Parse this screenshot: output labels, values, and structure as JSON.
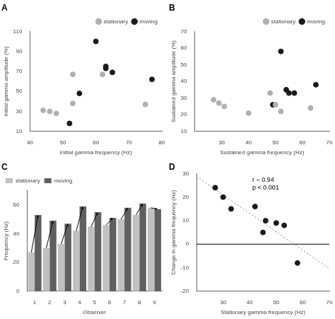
{
  "chart_data": [
    {
      "type": "scatter",
      "title": "A",
      "xlabel": "Initial gamma frequency (Hz)",
      "ylabel": "Initial gamma amplitude (%)",
      "xlim": [
        40,
        80
      ],
      "ylim": [
        10,
        110
      ],
      "xticks": [
        40,
        50,
        60,
        70,
        80
      ],
      "yticks": [
        10,
        30,
        50,
        70,
        90,
        110
      ],
      "grid": false,
      "legend": "upper right",
      "series": [
        {
          "name": "stationary",
          "color": "#b0b0b0",
          "x": [
            44,
            46,
            48,
            53,
            53,
            62,
            75
          ],
          "values": [
            31,
            30,
            28,
            38,
            67,
            67,
            37
          ]
        },
        {
          "name": "moving",
          "color": "#1a1a1a",
          "x": [
            52,
            55,
            60,
            63,
            63,
            65,
            77
          ],
          "values": [
            18,
            48,
            100,
            75,
            73,
            69,
            62
          ]
        }
      ]
    },
    {
      "type": "scatter",
      "title": "B",
      "xlabel": "Sustained gamma frequency (Hz)",
      "ylabel": "Sustained gamma amplitude (%)",
      "xlim": [
        20,
        70
      ],
      "ylim": [
        10,
        70
      ],
      "xticks": [
        30,
        40,
        50,
        60,
        70
      ],
      "yticks": [
        10,
        20,
        30,
        40,
        50,
        60,
        70
      ],
      "grid": false,
      "legend": "upper right",
      "series": [
        {
          "name": "stationary",
          "color": "#b0b0b0",
          "x": [
            27,
            29,
            31,
            40,
            48,
            50,
            52,
            63
          ],
          "values": [
            29,
            27,
            25,
            21,
            33,
            26,
            22,
            24
          ]
        },
        {
          "name": "moving",
          "color": "#1a1a1a",
          "x": [
            49,
            52,
            54,
            55,
            57,
            65
          ],
          "values": [
            26,
            58,
            35,
            33,
            33,
            38
          ]
        }
      ]
    },
    {
      "type": "bar",
      "title": "C",
      "xlabel": "Observer",
      "ylabel": "Frequency (Hz)",
      "categories": [
        "1",
        "2",
        "3",
        "4",
        "5",
        "6",
        "7",
        "8",
        "9"
      ],
      "ylim": [
        0,
        70
      ],
      "yticks": [
        0,
        20,
        40,
        60
      ],
      "grid": false,
      "legend": "upper left",
      "series": [
        {
          "name": "stationary",
          "color": "#c0c0c0",
          "values": [
            27,
            30,
            33,
            42,
            45,
            46,
            50,
            53,
            58
          ]
        },
        {
          "name": "moving",
          "color": "#606060",
          "values": [
            53,
            49,
            47,
            59,
            55,
            51,
            58,
            61,
            57
          ]
        }
      ]
    },
    {
      "type": "scatter",
      "title": "D",
      "xlabel": "Stationary gamma frequency (Hz)",
      "ylabel": "Change in gamma frequency (Hz)",
      "xlim": [
        20,
        70
      ],
      "ylim": [
        -20,
        30
      ],
      "xticks": [
        30,
        40,
        50,
        60,
        70
      ],
      "yticks": [
        -20,
        -10,
        0,
        10,
        20,
        30
      ],
      "grid": false,
      "annotation": "r = 0.94\np < 0.001",
      "series": [
        {
          "type": "scatter",
          "color": "#1a1a1a",
          "x": [
            27,
            30,
            33,
            42,
            45,
            46,
            50,
            53,
            58
          ],
          "values": [
            24,
            20,
            15,
            16,
            5,
            10,
            9,
            8,
            -8
          ]
        },
        {
          "type": "line",
          "line_style": "dotted",
          "color": "gray",
          "x": [
            20,
            70
          ],
          "values": [
            28.745614035087716,
            -10.399122807017548
          ]
        },
        {
          "type": "line",
          "line_style": "solid",
          "color": "black",
          "x": [
            20,
            70
          ],
          "values": [
            0,
            0
          ]
        }
      ]
    }
  ]
}
